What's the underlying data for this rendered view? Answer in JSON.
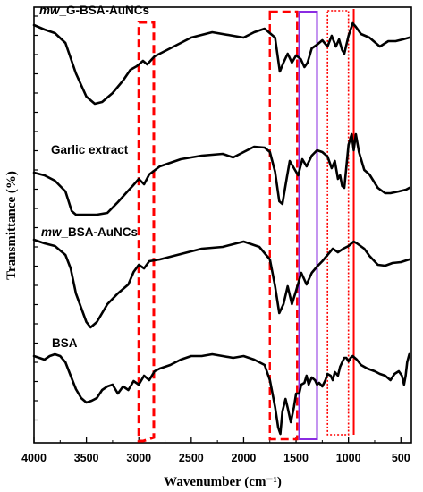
{
  "chart_data": {
    "type": "line",
    "xlabel": "Wavenumber (cm⁻¹)",
    "ylabel": "Transmittance (%)",
    "xlim": [
      4000,
      400
    ],
    "x_ticks": [
      "4000",
      "3500",
      "3000",
      "2500",
      "2000",
      "1500",
      "1000",
      "500"
    ],
    "x_tick_values": [
      4000,
      3500,
      3000,
      2500,
      2000,
      1500,
      1000,
      500
    ],
    "y_ticks_labeled": false,
    "grid": false,
    "series": [
      {
        "name": "mw_G-BSA-AuNCs",
        "label_prefix": "mw",
        "label_suffix": "_G-BSA-AuNCs",
        "points": [
          [
            4000,
            28
          ],
          [
            3900,
            33
          ],
          [
            3800,
            37
          ],
          [
            3700,
            48
          ],
          [
            3600,
            82
          ],
          [
            3500,
            108
          ],
          [
            3420,
            116
          ],
          [
            3350,
            114
          ],
          [
            3250,
            104
          ],
          [
            3150,
            90
          ],
          [
            3080,
            78
          ],
          [
            3020,
            74
          ],
          [
            2960,
            68
          ],
          [
            2920,
            72
          ],
          [
            2850,
            63
          ],
          [
            2700,
            54
          ],
          [
            2500,
            42
          ],
          [
            2300,
            36
          ],
          [
            2100,
            40
          ],
          [
            2000,
            42
          ],
          [
            1900,
            36
          ],
          [
            1800,
            32
          ],
          [
            1700,
            42
          ],
          [
            1655,
            80
          ],
          [
            1620,
            70
          ],
          [
            1580,
            60
          ],
          [
            1540,
            70
          ],
          [
            1500,
            62
          ],
          [
            1455,
            66
          ],
          [
            1420,
            75
          ],
          [
            1390,
            70
          ],
          [
            1350,
            54
          ],
          [
            1300,
            50
          ],
          [
            1250,
            45
          ],
          [
            1200,
            52
          ],
          [
            1160,
            40
          ],
          [
            1120,
            52
          ],
          [
            1090,
            44
          ],
          [
            1060,
            56
          ],
          [
            1040,
            60
          ],
          [
            1000,
            40
          ],
          [
            960,
            26
          ],
          [
            930,
            30
          ],
          [
            880,
            38
          ],
          [
            800,
            42
          ],
          [
            700,
            52
          ],
          [
            620,
            46
          ],
          [
            550,
            46
          ],
          [
            480,
            44
          ],
          [
            420,
            42
          ]
        ]
      },
      {
        "name": "Garlic extract",
        "points": [
          [
            4000,
            193
          ],
          [
            3900,
            196
          ],
          [
            3800,
            202
          ],
          [
            3700,
            214
          ],
          [
            3640,
            236
          ],
          [
            3600,
            240
          ],
          [
            3400,
            240
          ],
          [
            3300,
            238
          ],
          [
            3200,
            226
          ],
          [
            3100,
            213
          ],
          [
            3060,
            208
          ],
          [
            3000,
            200
          ],
          [
            2950,
            206
          ],
          [
            2900,
            195
          ],
          [
            2800,
            186
          ],
          [
            2600,
            178
          ],
          [
            2400,
            174
          ],
          [
            2200,
            172
          ],
          [
            2100,
            176
          ],
          [
            2000,
            170
          ],
          [
            1900,
            164
          ],
          [
            1800,
            165
          ],
          [
            1750,
            170
          ],
          [
            1700,
            192
          ],
          [
            1660,
            225
          ],
          [
            1630,
            228
          ],
          [
            1590,
            200
          ],
          [
            1560,
            180
          ],
          [
            1520,
            188
          ],
          [
            1480,
            196
          ],
          [
            1440,
            178
          ],
          [
            1400,
            186
          ],
          [
            1350,
            174
          ],
          [
            1300,
            168
          ],
          [
            1250,
            170
          ],
          [
            1200,
            175
          ],
          [
            1160,
            188
          ],
          [
            1130,
            180
          ],
          [
            1100,
            200
          ],
          [
            1080,
            196
          ],
          [
            1060,
            208
          ],
          [
            1040,
            210
          ],
          [
            1000,
            162
          ],
          [
            970,
            150
          ],
          [
            950,
            168
          ],
          [
            930,
            150
          ],
          [
            900,
            170
          ],
          [
            850,
            190
          ],
          [
            800,
            195
          ],
          [
            720,
            210
          ],
          [
            650,
            216
          ],
          [
            600,
            216
          ],
          [
            520,
            214
          ],
          [
            450,
            212
          ],
          [
            420,
            210
          ]
        ]
      },
      {
        "name": "mw_BSA-AuNCs",
        "label_prefix": "mw",
        "label_suffix": "_BSA-AuNCs",
        "points": [
          [
            4000,
            268
          ],
          [
            3900,
            272
          ],
          [
            3800,
            275
          ],
          [
            3700,
            285
          ],
          [
            3650,
            300
          ],
          [
            3600,
            328
          ],
          [
            3500,
            360
          ],
          [
            3460,
            366
          ],
          [
            3400,
            360
          ],
          [
            3300,
            340
          ],
          [
            3200,
            328
          ],
          [
            3100,
            318
          ],
          [
            3050,
            304
          ],
          [
            3000,
            296
          ],
          [
            2950,
            300
          ],
          [
            2900,
            292
          ],
          [
            2800,
            290
          ],
          [
            2600,
            284
          ],
          [
            2400,
            278
          ],
          [
            2200,
            276
          ],
          [
            2000,
            270
          ],
          [
            1850,
            276
          ],
          [
            1750,
            290
          ],
          [
            1700,
            320
          ],
          [
            1660,
            350
          ],
          [
            1620,
            340
          ],
          [
            1580,
            320
          ],
          [
            1540,
            340
          ],
          [
            1500,
            325
          ],
          [
            1450,
            305
          ],
          [
            1400,
            318
          ],
          [
            1350,
            305
          ],
          [
            1300,
            298
          ],
          [
            1250,
            292
          ],
          [
            1200,
            285
          ],
          [
            1150,
            278
          ],
          [
            1100,
            282
          ],
          [
            1050,
            278
          ],
          [
            1000,
            275
          ],
          [
            950,
            270
          ],
          [
            920,
            272
          ],
          [
            850,
            278
          ],
          [
            800,
            286
          ],
          [
            720,
            296
          ],
          [
            650,
            297
          ],
          [
            580,
            294
          ],
          [
            500,
            293
          ],
          [
            420,
            290
          ]
        ]
      },
      {
        "name": "BSA",
        "points": [
          [
            4000,
            398
          ],
          [
            3950,
            400
          ],
          [
            3900,
            402
          ],
          [
            3850,
            398
          ],
          [
            3800,
            396
          ],
          [
            3750,
            398
          ],
          [
            3700,
            405
          ],
          [
            3650,
            420
          ],
          [
            3600,
            435
          ],
          [
            3550,
            445
          ],
          [
            3500,
            450
          ],
          [
            3450,
            448
          ],
          [
            3400,
            445
          ],
          [
            3350,
            436
          ],
          [
            3300,
            432
          ],
          [
            3250,
            430
          ],
          [
            3200,
            440
          ],
          [
            3150,
            432
          ],
          [
            3100,
            436
          ],
          [
            3050,
            426
          ],
          [
            3000,
            430
          ],
          [
            2950,
            420
          ],
          [
            2900,
            425
          ],
          [
            2850,
            415
          ],
          [
            2800,
            412
          ],
          [
            2700,
            408
          ],
          [
            2600,
            402
          ],
          [
            2500,
            398
          ],
          [
            2400,
            398
          ],
          [
            2300,
            396
          ],
          [
            2200,
            398
          ],
          [
            2100,
            400
          ],
          [
            2000,
            398
          ],
          [
            1900,
            402
          ],
          [
            1800,
            408
          ],
          [
            1750,
            425
          ],
          [
            1700,
            455
          ],
          [
            1670,
            478
          ],
          [
            1650,
            485
          ],
          [
            1630,
            460
          ],
          [
            1600,
            446
          ],
          [
            1580,
            456
          ],
          [
            1550,
            472
          ],
          [
            1520,
            455
          ],
          [
            1500,
            440
          ],
          [
            1470,
            440
          ],
          [
            1450,
            430
          ],
          [
            1420,
            428
          ],
          [
            1400,
            420
          ],
          [
            1380,
            430
          ],
          [
            1350,
            422
          ],
          [
            1320,
            425
          ],
          [
            1300,
            430
          ],
          [
            1280,
            428
          ],
          [
            1250,
            432
          ],
          [
            1220,
            425
          ],
          [
            1200,
            418
          ],
          [
            1170,
            420
          ],
          [
            1150,
            425
          ],
          [
            1130,
            416
          ],
          [
            1100,
            420
          ],
          [
            1080,
            410
          ],
          [
            1060,
            405
          ],
          [
            1040,
            400
          ],
          [
            1020,
            400
          ],
          [
            1000,
            404
          ],
          [
            980,
            400
          ],
          [
            960,
            398
          ],
          [
            920,
            402
          ],
          [
            880,
            408
          ],
          [
            820,
            412
          ],
          [
            750,
            415
          ],
          [
            700,
            418
          ],
          [
            650,
            420
          ],
          [
            600,
            425
          ],
          [
            560,
            418
          ],
          [
            520,
            415
          ],
          [
            490,
            420
          ],
          [
            470,
            430
          ],
          [
            455,
            420
          ],
          [
            440,
            405
          ],
          [
            420,
            396
          ]
        ]
      }
    ],
    "annotations": [
      {
        "shape": "trapezoid-box",
        "style": "dashed",
        "color": "#ff0000",
        "x_range": [
          3000,
          2840
        ]
      },
      {
        "shape": "box",
        "style": "dashed",
        "color": "#ff0000",
        "x_range": [
          1750,
          1490
        ]
      },
      {
        "shape": "box",
        "style": "solid",
        "color": "#8a2be2",
        "x_range": [
          1470,
          1300
        ]
      },
      {
        "shape": "box",
        "style": "dotted",
        "color": "#ff0000",
        "x_range": [
          1200,
          1000
        ]
      },
      {
        "shape": "vline",
        "style": "solid",
        "color": "#ff0000",
        "x": 950
      }
    ]
  }
}
